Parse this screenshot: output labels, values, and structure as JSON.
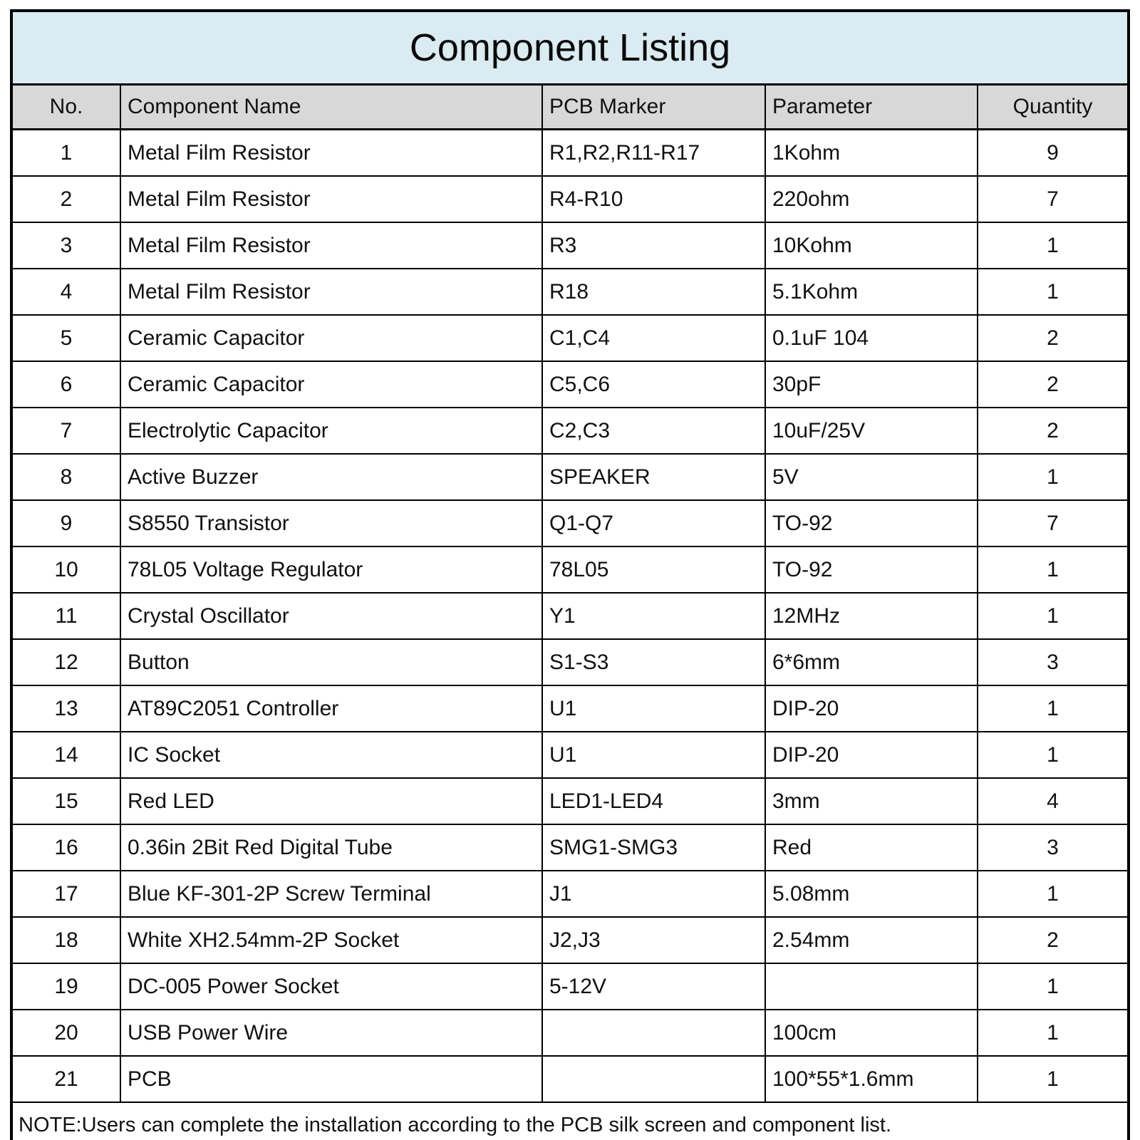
{
  "title": "Component Listing",
  "columns": [
    "No.",
    "Component Name",
    "PCB Marker",
    "Parameter",
    "Quantity"
  ],
  "rows": [
    {
      "no": "1",
      "name": "Metal Film Resistor",
      "marker": "R1,R2,R11-R17",
      "param": "1Kohm",
      "qty": "9"
    },
    {
      "no": "2",
      "name": "Metal Film Resistor",
      "marker": "R4-R10",
      "param": "220ohm",
      "qty": "7"
    },
    {
      "no": "3",
      "name": "Metal Film Resistor",
      "marker": "R3",
      "param": "10Kohm",
      "qty": "1"
    },
    {
      "no": "4",
      "name": "Metal Film Resistor",
      "marker": "R18",
      "param": "5.1Kohm",
      "qty": "1"
    },
    {
      "no": "5",
      "name": "Ceramic Capacitor",
      "marker": "C1,C4",
      "param": "0.1uF 104",
      "qty": "2"
    },
    {
      "no": "6",
      "name": "Ceramic Capacitor",
      "marker": "C5,C6",
      "param": "30pF",
      "qty": "2"
    },
    {
      "no": "7",
      "name": "Electrolytic Capacitor",
      "marker": "C2,C3",
      "param": "10uF/25V",
      "qty": "2"
    },
    {
      "no": "8",
      "name": "Active Buzzer",
      "marker": "SPEAKER",
      "param": "5V",
      "qty": "1"
    },
    {
      "no": "9",
      "name": "S8550 Transistor",
      "marker": "Q1-Q7",
      "param": "TO-92",
      "qty": "7"
    },
    {
      "no": "10",
      "name": "78L05 Voltage Regulator",
      "marker": "78L05",
      "param": "TO-92",
      "qty": "1"
    },
    {
      "no": "11",
      "name": "Crystal Oscillator",
      "marker": "Y1",
      "param": "12MHz",
      "qty": "1"
    },
    {
      "no": "12",
      "name": "Button",
      "marker": "S1-S3",
      "param": "6*6mm",
      "qty": "3"
    },
    {
      "no": "13",
      "name": "AT89C2051 Controller",
      "marker": "U1",
      "param": "DIP-20",
      "qty": "1"
    },
    {
      "no": "14",
      "name": "IC Socket",
      "marker": "U1",
      "param": "DIP-20",
      "qty": "1"
    },
    {
      "no": "15",
      "name": "Red LED",
      "marker": "LED1-LED4",
      "param": "3mm",
      "qty": "4"
    },
    {
      "no": "16",
      "name": "0.36in 2Bit Red Digital Tube",
      "marker": "SMG1-SMG3",
      "param": "Red",
      "qty": "3"
    },
    {
      "no": "17",
      "name": "Blue KF-301-2P Screw Terminal",
      "marker": "J1",
      "param": "5.08mm",
      "qty": "1"
    },
    {
      "no": "18",
      "name": "White XH2.54mm-2P Socket",
      "marker": "J2,J3",
      "param": "2.54mm",
      "qty": "2"
    },
    {
      "no": "19",
      "name": "DC-005 Power Socket",
      "marker": "5-12V",
      "param": "",
      "qty": "1"
    },
    {
      "no": "20",
      "name": "USB Power Wire",
      "marker": "",
      "param": "100cm",
      "qty": "1"
    },
    {
      "no": "21",
      "name": "PCB",
      "marker": "",
      "param": "100*55*1.6mm",
      "qty": "1"
    }
  ],
  "note": "NOTE:Users can complete the installation according to the PCB silk screen and component list.",
  "colors": {
    "title_bg": "#daebf1",
    "header_bg": "#d8d8d8",
    "border": "#000000"
  }
}
